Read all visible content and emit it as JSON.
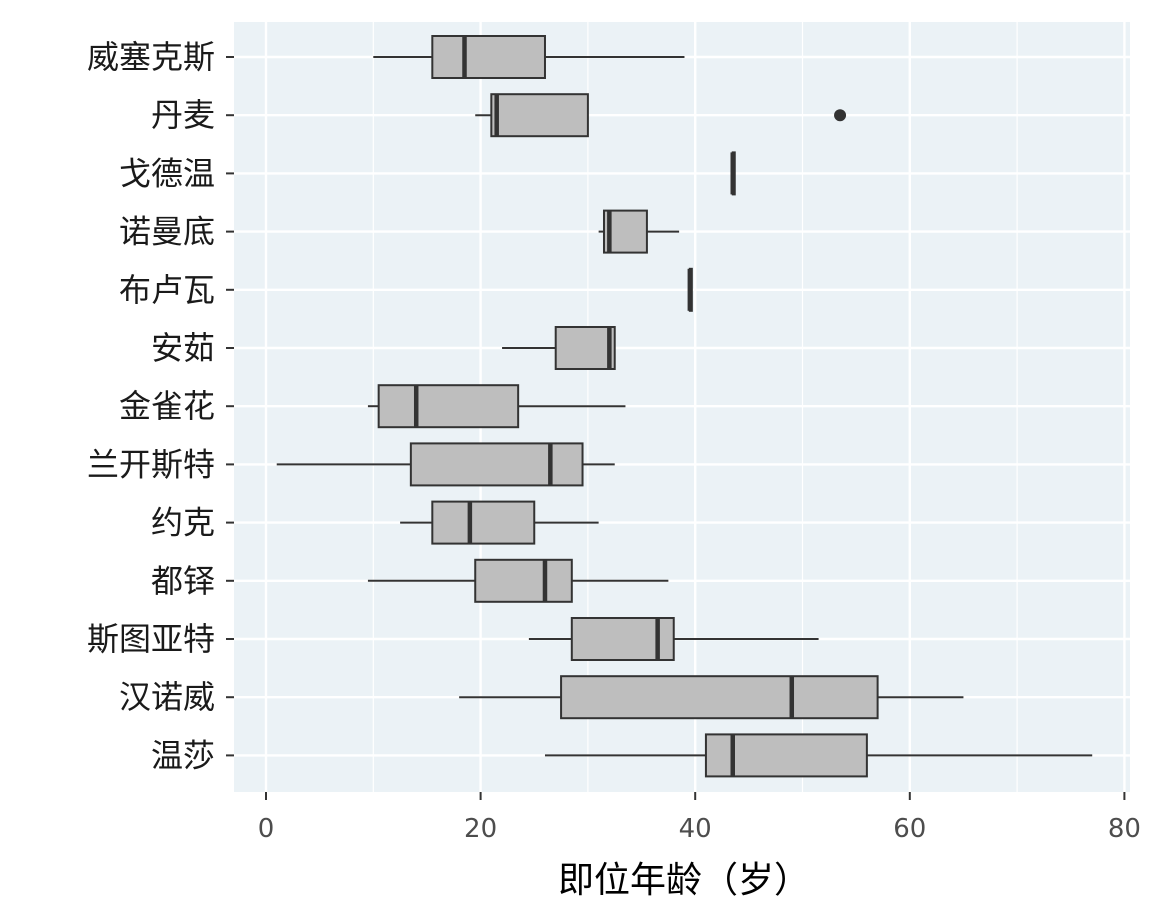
{
  "chart_data": {
    "type": "boxplot",
    "orientation": "horizontal",
    "title": "",
    "xlabel": "即位年龄（岁）",
    "ylabel": "",
    "xlim": [
      -3,
      81
    ],
    "xticks": [
      0,
      20,
      40,
      60,
      80
    ],
    "grid": true,
    "legend": "none",
    "colors": {
      "panel_background": "#ebf2f6",
      "grid_major": "#ffffff",
      "box_fill": "#bebebe",
      "box_stroke": "#333333",
      "outlier": "#333333"
    },
    "categories": [
      "威塞克斯",
      "丹麦",
      "戈德温",
      "诺曼底",
      "布卢瓦",
      "安茹",
      "金雀花",
      "兰开斯特",
      "约克",
      "都铎",
      "斯图亚特",
      "汉诺威",
      "温莎"
    ],
    "boxes": [
      {
        "category": "威塞克斯",
        "min": 10,
        "q1": 15.5,
        "median": 18.5,
        "q3": 26,
        "max": 39,
        "outliers": []
      },
      {
        "category": "丹麦",
        "min": 19.5,
        "q1": 21,
        "median": 21.5,
        "q3": 30,
        "max": 30,
        "outliers": [
          53.5
        ]
      },
      {
        "category": "戈德温",
        "min": 43.5,
        "q1": 43.5,
        "median": 43.5,
        "q3": 43.5,
        "max": 43.5,
        "outliers": []
      },
      {
        "category": "诺曼底",
        "min": 31,
        "q1": 31.5,
        "median": 32,
        "q3": 35.5,
        "max": 38.5,
        "outliers": []
      },
      {
        "category": "布卢瓦",
        "min": 39.5,
        "q1": 39.5,
        "median": 39.5,
        "q3": 39.5,
        "max": 39.5,
        "outliers": []
      },
      {
        "category": "安茹",
        "min": 22,
        "q1": 27,
        "median": 32,
        "q3": 32.5,
        "max": 32.5,
        "outliers": []
      },
      {
        "category": "金雀花",
        "min": 9.5,
        "q1": 10.5,
        "median": 14,
        "q3": 23.5,
        "max": 33.5,
        "outliers": []
      },
      {
        "category": "兰开斯特",
        "min": 1,
        "q1": 13.5,
        "median": 26.5,
        "q3": 29.5,
        "max": 32.5,
        "outliers": []
      },
      {
        "category": "约克",
        "min": 12.5,
        "q1": 15.5,
        "median": 19,
        "q3": 25,
        "max": 31,
        "outliers": []
      },
      {
        "category": "都铎",
        "min": 9.5,
        "q1": 19.5,
        "median": 26,
        "q3": 28.5,
        "max": 37.5,
        "outliers": []
      },
      {
        "category": "斯图亚特",
        "min": 24.5,
        "q1": 28.5,
        "median": 36.5,
        "q3": 38,
        "max": 51.5,
        "outliers": []
      },
      {
        "category": "汉诺威",
        "min": 18,
        "q1": 27.5,
        "median": 49,
        "q3": 57,
        "max": 65,
        "outliers": []
      },
      {
        "category": "温莎",
        "min": 26,
        "q1": 41,
        "median": 43.5,
        "q3": 56,
        "max": 77,
        "outliers": []
      }
    ]
  }
}
